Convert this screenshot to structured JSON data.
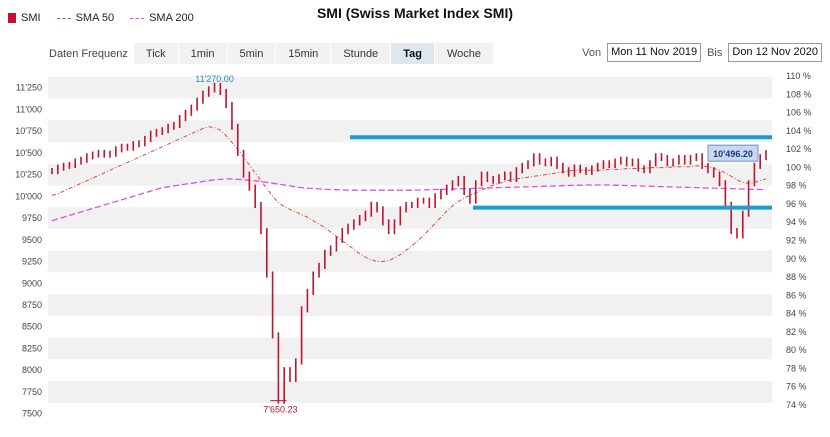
{
  "title": "SMI (Swiss Market Index SMI)",
  "legend": [
    {
      "label": "SMI",
      "color": "#c0142a"
    },
    {
      "label": "SMA 50",
      "color": "#e0483c"
    },
    {
      "label": "SMA 200",
      "color": "#e24ce0"
    }
  ],
  "toolbar": {
    "label": "Daten Frequenz",
    "buttons": [
      "Tick",
      "1min",
      "5min",
      "15min",
      "Stunde",
      "Tag",
      "Woche"
    ],
    "active": "Tag"
  },
  "daterange": {
    "from_label": "Von",
    "from_value": "Mon 11 Nov 2019",
    "to_label": "Bis",
    "to_value": "Don 12 Nov 2020"
  },
  "chart_data": {
    "type": "line",
    "left_axis": {
      "ticks": [
        "11'250",
        "11'000",
        "10'750",
        "10'500",
        "10'250",
        "10'000",
        "9750",
        "9500",
        "9250",
        "9000",
        "8750",
        "8500",
        "8250",
        "8000",
        "7750",
        "7500"
      ],
      "min": 7450,
      "max": 11430
    },
    "right_axis": {
      "ticks": [
        "110 %",
        "108 %",
        "106 %",
        "104 %",
        "102 %",
        "100 %",
        "98 %",
        "96 %",
        "94 %",
        "92 %",
        "90 %",
        "88 %",
        "86 %",
        "84 %",
        "82 %",
        "80 %",
        "78 %",
        "76 %",
        "74 %"
      ]
    },
    "annotations": {
      "high": "11'270.00",
      "low": "7'650.23",
      "last": "10'496.20"
    },
    "high_value": 11270,
    "low_value": 7650.23,
    "last_value": 10496.2,
    "resistance_level": 10680,
    "support_level": 9870,
    "series": [
      {
        "name": "SMI",
        "color": "#c0142a",
        "values": [
          10290,
          10330,
          10350,
          10360,
          10400,
          10420,
          10460,
          10480,
          10500,
          10480,
          10490,
          10540,
          10570,
          10560,
          10600,
          10610,
          10660,
          10720,
          10740,
          10760,
          10800,
          10820,
          10900,
          10960,
          11020,
          11100,
          11180,
          11230,
          11270,
          11200,
          11050,
          10800,
          10500,
          10250,
          10100,
          9900,
          9600,
          9100,
          8400,
          7650,
          8000,
          7900,
          8100,
          8700,
          8900,
          9100,
          9200,
          9350,
          9400,
          9500,
          9600,
          9650,
          9700,
          9750,
          9800,
          9900,
          9850,
          9700,
          9600,
          9700,
          9850,
          9900,
          9900,
          9950,
          9950,
          9900,
          10000,
          10050,
          10100,
          10150,
          10200,
          10050,
          9950,
          10150,
          10250,
          10200,
          10180,
          10220,
          10250,
          10200,
          10300,
          10350,
          10380,
          10460,
          10400,
          10380,
          10420,
          10350,
          10300,
          10260,
          10330,
          10300,
          10280,
          10320,
          10350,
          10380,
          10360,
          10400,
          10420,
          10380,
          10400,
          10320,
          10300,
          10380,
          10460,
          10440,
          10380,
          10400,
          10440,
          10400,
          10440,
          10460,
          10350,
          10300,
          10250,
          10150,
          9900,
          9600,
          9550,
          9800,
          10150,
          10350,
          10450,
          10496
        ]
      },
      {
        "name": "SMA 50",
        "color": "#e0483c",
        "values": [
          10010,
          10030,
          10060,
          10090,
          10120,
          10150,
          10180,
          10210,
          10240,
          10270,
          10300,
          10330,
          10360,
          10390,
          10420,
          10450,
          10480,
          10510,
          10540,
          10570,
          10600,
          10630,
          10660,
          10690,
          10720,
          10750,
          10780,
          10800,
          10790,
          10760,
          10700,
          10620,
          10540,
          10450,
          10360,
          10270,
          10180,
          10090,
          10000,
          9930,
          9880,
          9850,
          9820,
          9790,
          9760,
          9720,
          9680,
          9640,
          9590,
          9540,
          9490,
          9440,
          9390,
          9340,
          9300,
          9270,
          9250,
          9250,
          9260,
          9290,
          9330,
          9380,
          9430,
          9490,
          9550,
          9620,
          9690,
          9760,
          9830,
          9890,
          9940,
          9980,
          10010,
          10040,
          10070,
          10100,
          10130,
          10150,
          10170,
          10190,
          10200,
          10210,
          10220,
          10230,
          10240,
          10250,
          10260,
          10270,
          10280,
          10290,
          10300,
          10300,
          10300,
          10300,
          10300,
          10300,
          10310,
          10310,
          10310,
          10320,
          10320,
          10320,
          10320,
          10330,
          10330,
          10330,
          10330,
          10340,
          10340,
          10340,
          10340,
          10350,
          10350,
          10340,
          10320,
          10300,
          10270,
          10230,
          10190,
          10160,
          10150,
          10160,
          10180,
          10200
        ]
      },
      {
        "name": "SMA 200",
        "color": "#e24ce0",
        "values": [
          9720,
          9740,
          9760,
          9780,
          9800,
          9820,
          9840,
          9860,
          9880,
          9900,
          9920,
          9940,
          9960,
          9980,
          10000,
          10020,
          10040,
          10060,
          10080,
          10100,
          10110,
          10120,
          10130,
          10140,
          10150,
          10160,
          10170,
          10180,
          10190,
          10195,
          10200,
          10200,
          10195,
          10190,
          10185,
          10180,
          10170,
          10160,
          10150,
          10140,
          10130,
          10120,
          10110,
          10100,
          10095,
          10090,
          10085,
          10080,
          10078,
          10076,
          10074,
          10072,
          10070,
          10070,
          10070,
          10070,
          10070,
          10070,
          10070,
          10070,
          10070,
          10070,
          10070,
          10072,
          10074,
          10076,
          10078,
          10080,
          10082,
          10084,
          10086,
          10088,
          10090,
          10092,
          10094,
          10096,
          10098,
          10100,
          10102,
          10104,
          10106,
          10108,
          10110,
          10112,
          10114,
          10116,
          10118,
          10120,
          10122,
          10124,
          10126,
          10128,
          10130,
          10130,
          10130,
          10130,
          10130,
          10128,
          10126,
          10124,
          10122,
          10120,
          10118,
          10116,
          10114,
          10112,
          10110,
          10108,
          10106,
          10104,
          10102,
          10100,
          10098,
          10096,
          10094,
          10092,
          10090,
          10088,
          10086,
          10084,
          10082,
          10080,
          10078,
          10076
        ]
      }
    ]
  }
}
